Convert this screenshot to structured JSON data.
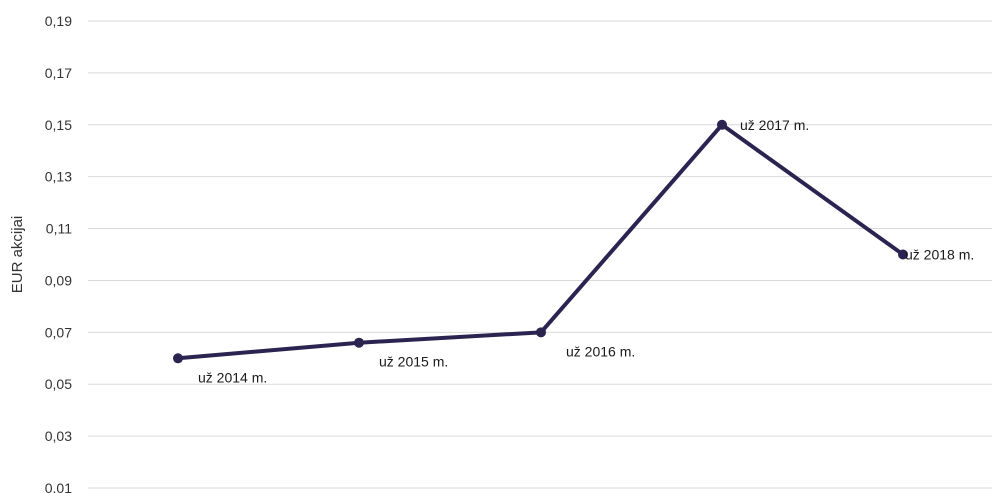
{
  "chart_data": {
    "type": "line",
    "title": "",
    "xlabel": "",
    "ylabel": "EUR akcijai",
    "ylim": [
      0.01,
      0.19
    ],
    "y_ticks": [
      "0,19",
      "0,17",
      "0,15",
      "0,13",
      "0,11",
      "0,09",
      "0,07",
      "0,05",
      "0,03",
      "0,01"
    ],
    "y_tick_values": [
      0.19,
      0.17,
      0.15,
      0.13,
      0.11,
      0.09,
      0.07,
      0.05,
      0.03,
      0.01
    ],
    "grid": true,
    "legend": "none",
    "series": [
      {
        "color": "#2b2350",
        "points": [
          {
            "label": "už 2014 m.",
            "value": 0.06
          },
          {
            "label": "už 2015 m.",
            "value": 0.066
          },
          {
            "label": "už 2016 m.",
            "value": 0.07
          },
          {
            "label": "už 2017 m.",
            "value": 0.15
          },
          {
            "label": "už 2018 m.",
            "value": 0.1
          }
        ]
      }
    ]
  }
}
